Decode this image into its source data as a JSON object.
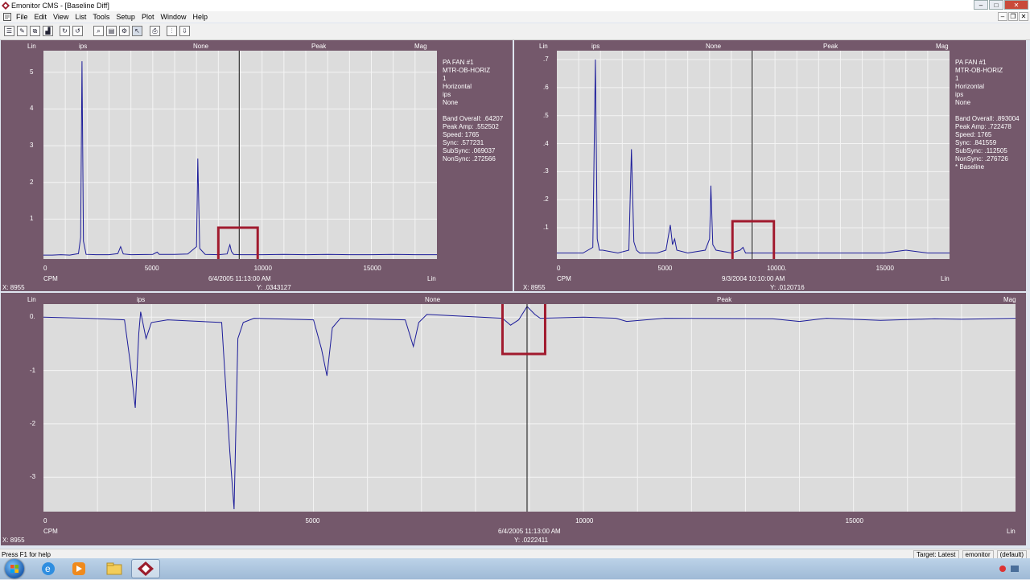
{
  "window": {
    "title": "Emonitor CMS - [Baseline Diff]"
  },
  "menu": [
    "File",
    "Edit",
    "View",
    "List",
    "Tools",
    "Setup",
    "Plot",
    "Window",
    "Help"
  ],
  "toolbar": {
    "icons": [
      "list-icon",
      "edit-icon",
      "copy-icon",
      "chart-icon",
      "refresh-icon",
      "undo-icon",
      "zoom-icon",
      "overlay-icon",
      "settings-icon",
      "cursor-icon",
      "print-icon",
      "spectrum-icon",
      "export-icon"
    ]
  },
  "top_left": {
    "header": {
      "lin": "Lin",
      "ips": "ips",
      "none": "None",
      "peak": "Peak",
      "mag": "Mag"
    },
    "info": [
      "PA FAN #1",
      "MTR-OB-HORIZ",
      "1",
      "Horizontal",
      "ips",
      "None",
      "",
      "Band Overall:  .64207",
      "Peak Amp:  .552502",
      "Speed:  1765",
      "Sync:  .577231",
      "SubSync:  .069037",
      "NonSync:  .272566"
    ],
    "bottom": {
      "cpm": "CPM",
      "lin": "Lin",
      "x": "X: 8955",
      "date": "6/4/2005 11:13:00 AM",
      "y": "Y: .0343127"
    },
    "chart_data": {
      "type": "line",
      "xlabel": "CPM",
      "xlim": [
        0,
        18000
      ],
      "ylim": [
        0,
        5.5
      ],
      "xticks": [
        0,
        5000,
        "10000",
        15000
      ],
      "yticks": [
        1,
        2,
        3,
        4,
        5
      ],
      "x": [
        0,
        400,
        800,
        1200,
        1600,
        1700,
        1765,
        1830,
        1950,
        2400,
        3000,
        3400,
        3530,
        3650,
        4000,
        5000,
        5200,
        5300,
        6000,
        6600,
        7000,
        7060,
        7150,
        7400,
        8000,
        8400,
        8500,
        8530,
        8600,
        8700,
        9000,
        10000,
        11000,
        12000,
        13000,
        14000,
        15000,
        16000,
        17000,
        18000
      ],
      "values": [
        0.02,
        0.02,
        0.03,
        0.02,
        0.06,
        0.5,
        5.3,
        0.4,
        0.04,
        0.03,
        0.03,
        0.06,
        0.25,
        0.05,
        0.03,
        0.04,
        0.1,
        0.04,
        0.04,
        0.05,
        0.25,
        2.65,
        0.2,
        0.04,
        0.03,
        0.05,
        0.25,
        0.3,
        0.12,
        0.04,
        0.03,
        0.03,
        0.04,
        0.03,
        0.04,
        0.03,
        0.03,
        0.04,
        0.03,
        0.03
      ]
    }
  },
  "top_right": {
    "header": {
      "lin": "Lin",
      "ips": "ips",
      "none": "None",
      "peak": "Peak",
      "mag": "Mag"
    },
    "info": [
      "PA FAN #1",
      "MTR-OB-HORIZ",
      "1",
      "Horizontal",
      "ips",
      "None",
      "",
      "Band Overall:  .893004",
      "Peak Amp:  .722478",
      "Speed:  1765",
      "Sync:  .841559",
      "SubSync:  .112505",
      "NonSync:  .276726",
      "* Baseline"
    ],
    "bottom": {
      "cpm": "CPM",
      "lin": "Lin",
      "x": "X: 8955",
      "date": "9/3/2004 10:10:00 AM",
      "y": "Y: .0120716"
    },
    "chart_data": {
      "type": "line",
      "xlabel": "CPM",
      "xlim": [
        0,
        18000
      ],
      "ylim": [
        0,
        0.72
      ],
      "xticks": [
        0,
        5000,
        "10000.",
        15000
      ],
      "yticks": [
        ".1",
        ".2",
        ".3",
        ".4",
        ".5",
        ".6",
        ".7"
      ],
      "x": [
        0,
        600,
        1200,
        1650,
        1765,
        1850,
        1950,
        2100,
        2800,
        3300,
        3420,
        3530,
        3650,
        3800,
        4600,
        5000,
        5200,
        5300,
        5400,
        5500,
        6000,
        6800,
        7000,
        7060,
        7150,
        7300,
        8000,
        8400,
        8530,
        8650,
        9000,
        10000,
        11000,
        12000,
        13000,
        14000,
        15000,
        16000,
        17000,
        18000
      ],
      "values": [
        0.01,
        0.01,
        0.01,
        0.03,
        0.7,
        0.06,
        0.02,
        0.02,
        0.01,
        0.02,
        0.38,
        0.05,
        0.02,
        0.01,
        0.01,
        0.02,
        0.11,
        0.04,
        0.06,
        0.02,
        0.01,
        0.02,
        0.06,
        0.25,
        0.04,
        0.02,
        0.01,
        0.02,
        0.03,
        0.01,
        0.01,
        0.01,
        0.01,
        0.01,
        0.01,
        0.01,
        0.01,
        0.02,
        0.01,
        0.01
      ]
    }
  },
  "bottom": {
    "header": {
      "lin": "Lin",
      "ips": "ips",
      "none": "None",
      "peak": "Peak",
      "mag": "Mag"
    },
    "bottom": {
      "cpm": "CPM",
      "lin": "Lin",
      "x": "X: 8955",
      "date": "6/4/2005 11:13:00 AM",
      "y": "Y: .0222411"
    },
    "chart_data": {
      "type": "line",
      "xlabel": "CPM",
      "xlim": [
        0,
        18000
      ],
      "ylim": [
        -3.6,
        0.2
      ],
      "xticks": [
        0,
        5000,
        10000,
        15000
      ],
      "yticks": [
        "0.",
        "-1",
        "-2",
        "-3"
      ],
      "x": [
        0,
        800,
        1500,
        1600,
        1700,
        1765,
        1800,
        1900,
        2000,
        2300,
        3300,
        3450,
        3530,
        3600,
        3700,
        3900,
        5000,
        5150,
        5250,
        5350,
        5500,
        6700,
        6850,
        6950,
        7100,
        8500,
        8650,
        8800,
        8955,
        9100,
        9200,
        10000,
        10600,
        10800,
        11500,
        13500,
        14000,
        14500,
        15500,
        16500,
        17000,
        18000
      ],
      "values": [
        0.0,
        -0.02,
        -0.05,
        -0.8,
        -1.7,
        -0.3,
        0.1,
        -0.4,
        -0.1,
        -0.05,
        -0.1,
        -2.5,
        -3.6,
        -0.4,
        -0.1,
        -0.02,
        -0.05,
        -0.6,
        -1.1,
        -0.2,
        -0.02,
        -0.05,
        -0.55,
        -0.1,
        0.05,
        -0.02,
        -0.15,
        -0.05,
        0.2,
        0.05,
        -0.02,
        0.0,
        -0.02,
        -0.08,
        -0.02,
        -0.03,
        -0.08,
        -0.02,
        -0.06,
        -0.03,
        -0.04,
        -0.02
      ]
    }
  },
  "statusbar": {
    "help": "Press F1 for help",
    "target": "Target: Latest",
    "user": "emonitor",
    "profile": "(default)"
  }
}
